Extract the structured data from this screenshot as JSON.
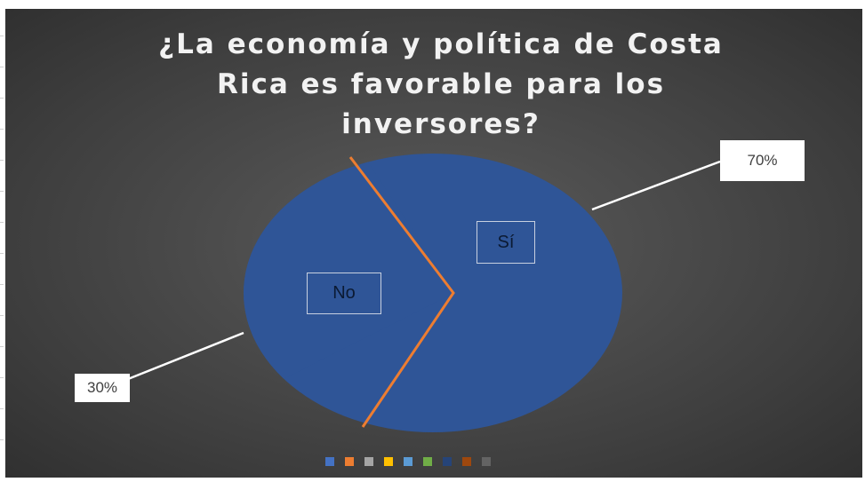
{
  "chart_data": {
    "type": "pie",
    "title": "¿La economía y política de Costa\nRica es favorable para los\ninversores?",
    "slices": [
      {
        "label": "Sí",
        "value": 70,
        "data_label": "70%",
        "color": "#2f5597"
      },
      {
        "label": "No",
        "value": 30,
        "data_label": "30%",
        "color": "#2f5597"
      }
    ],
    "slice_divider_color": "#ed7d31",
    "legend_placement": "bottom",
    "legend_colors": [
      "#4472c4",
      "#ed7d31",
      "#a5a5a5",
      "#ffc000",
      "#5b9bd5",
      "#70ad47",
      "#264478",
      "#9e480e",
      "#636363"
    ],
    "background_color": "#404040"
  }
}
